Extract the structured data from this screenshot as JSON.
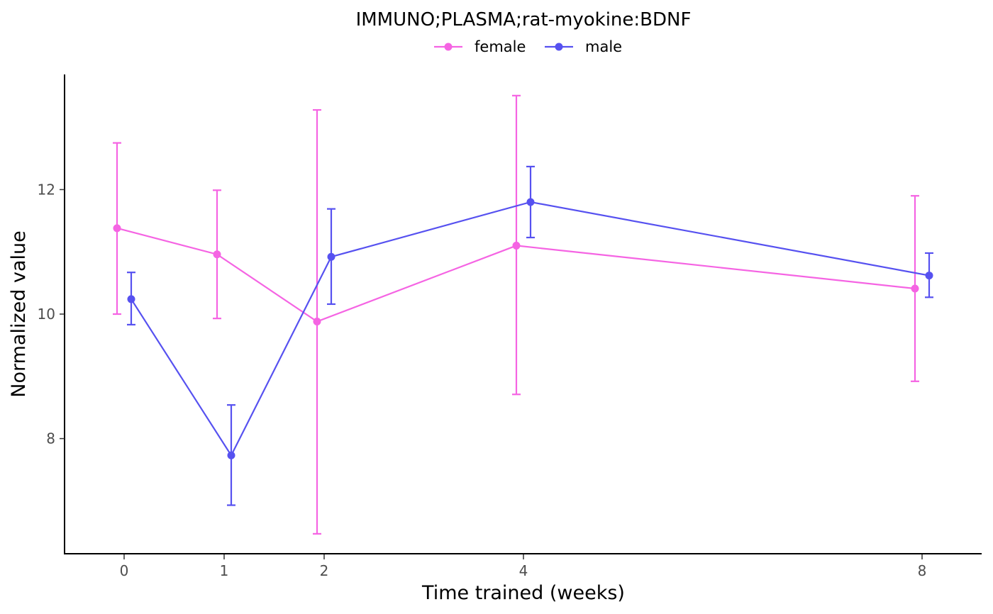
{
  "chart_data": {
    "type": "line",
    "title": "IMMUNO;PLASMA;rat-myokine:BDNF",
    "xlabel": "Time trained (weeks)",
    "ylabel": "Normalized value",
    "x_ticks": [
      0,
      1,
      2,
      4,
      8
    ],
    "y_ticks": [
      8,
      10,
      12
    ],
    "ylim": [
      6.15,
      13.85
    ],
    "grid": false,
    "legend_position": "top",
    "series": [
      {
        "name": "female",
        "color": "#F564E3",
        "x": [
          0,
          1,
          2,
          4,
          8
        ],
        "y": [
          11.38,
          10.96,
          9.88,
          11.1,
          10.41
        ],
        "err_low": [
          10.0,
          9.93,
          6.47,
          8.71,
          8.92
        ],
        "err_high": [
          12.75,
          11.99,
          13.28,
          13.51,
          11.9
        ]
      },
      {
        "name": "male",
        "color": "#5651F0",
        "x": [
          0,
          1,
          2,
          4,
          8
        ],
        "y": [
          10.24,
          7.73,
          10.92,
          11.8,
          10.62
        ],
        "err_low": [
          9.83,
          6.93,
          10.16,
          11.23,
          10.27
        ],
        "err_high": [
          10.67,
          8.54,
          11.69,
          12.37,
          10.98
        ]
      }
    ]
  }
}
